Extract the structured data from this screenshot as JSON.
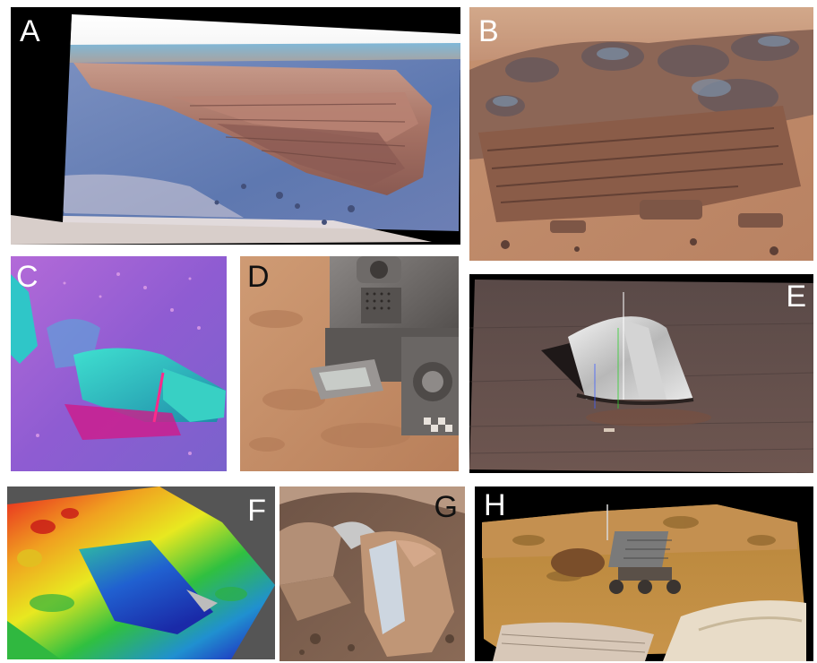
{
  "panels": [
    {
      "id": "A",
      "label": "A",
      "label_color": "#ffffff"
    },
    {
      "id": "B",
      "label": "B",
      "label_color": "#ffffff"
    },
    {
      "id": "C",
      "label": "C",
      "label_color": "#ffffff"
    },
    {
      "id": "D",
      "label": "D",
      "label_color": "#111111"
    },
    {
      "id": "E",
      "label": "E",
      "label_color": "#ffffff"
    },
    {
      "id": "F",
      "label": "F",
      "label_color": "#ffffff"
    },
    {
      "id": "G",
      "label": "G",
      "label_color": "#111111"
    },
    {
      "id": "H",
      "label": "H",
      "label_color": "#ffffff"
    }
  ],
  "colors": {
    "mars_sand": "#c8916a",
    "mars_rock": "#a06448",
    "false_color_sky": "#7fb0d8",
    "heightmap_high": "#e02020",
    "heightmap_low": "#2030c0"
  }
}
